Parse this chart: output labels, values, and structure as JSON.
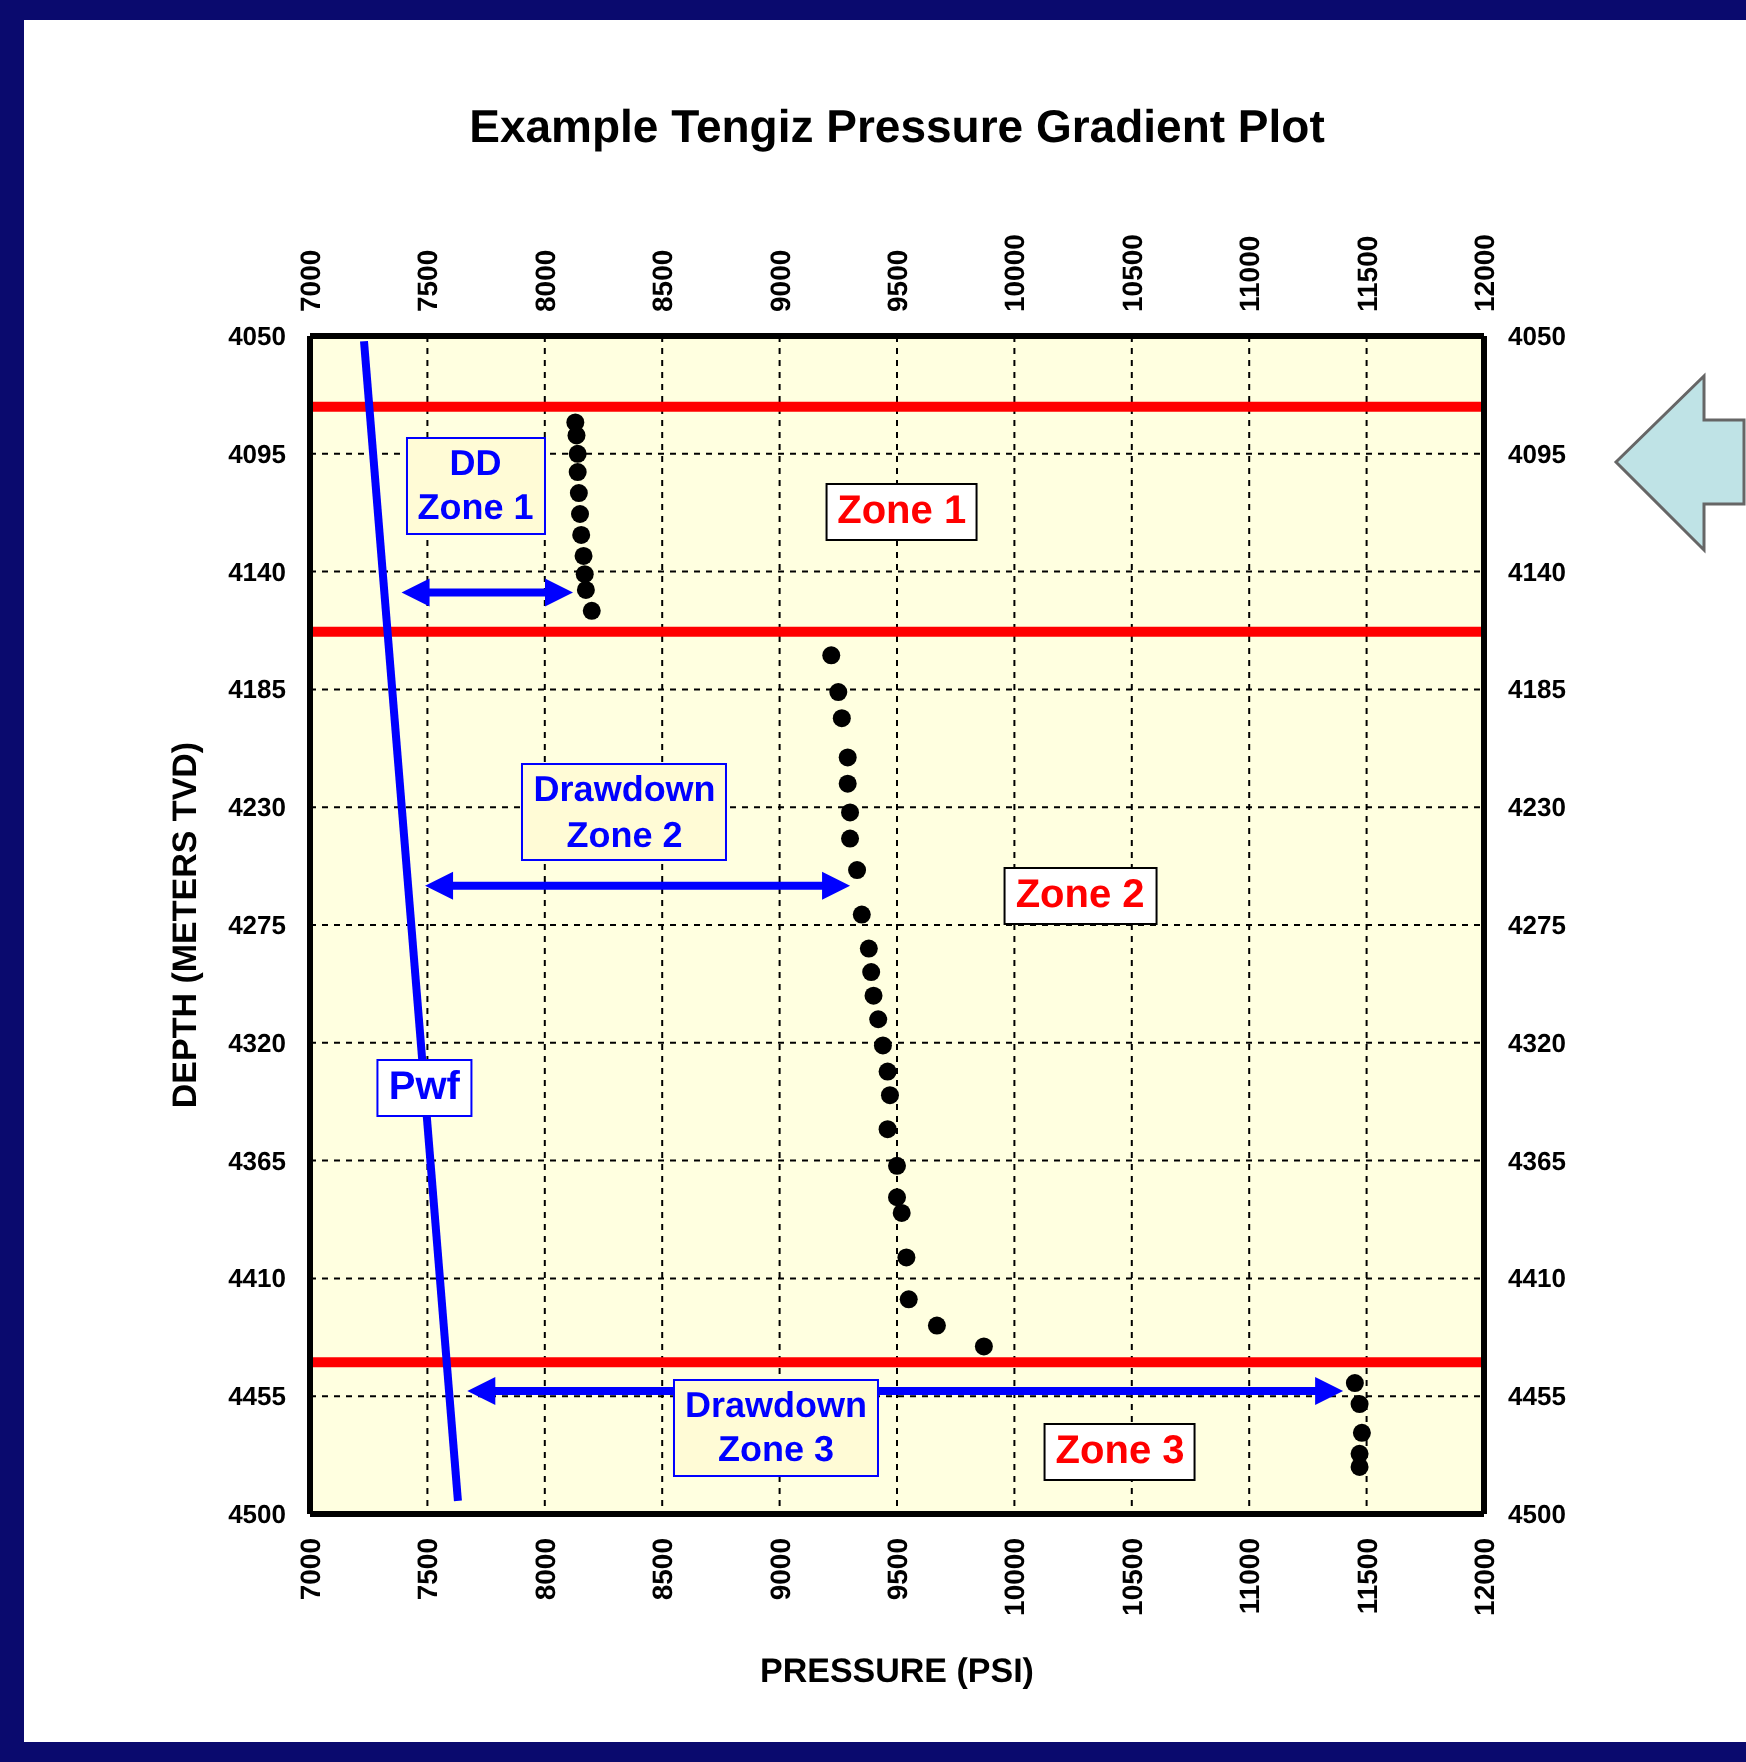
{
  "chart_data": {
    "type": "scatter",
    "title": "Example Tengiz Pressure Gradient Plot",
    "xlabel": "PRESSURE (PSI)",
    "ylabel": "DEPTH (METERS TVD)",
    "xlim": [
      7000,
      12000
    ],
    "xticks": [
      7000,
      7500,
      8000,
      8500,
      9000,
      9500,
      10000,
      10500,
      11000,
      11500,
      12000
    ],
    "x2lim": [
      7000,
      12000
    ],
    "x2ticks": [
      7000,
      7500,
      8000,
      8500,
      9000,
      9500,
      10000,
      10500,
      11000,
      11500,
      12000
    ],
    "ylim": [
      4500,
      4050
    ],
    "yticks": [
      4050,
      4095,
      4140,
      4185,
      4230,
      4275,
      4320,
      4365,
      4410,
      4455,
      4500
    ],
    "y2lim": [
      4500,
      4050
    ],
    "y2ticks": [
      4050,
      4095,
      4140,
      4185,
      4230,
      4275,
      4320,
      4365,
      4410,
      4455,
      4500
    ],
    "grid": true,
    "marker": "circle",
    "series": [
      {
        "color": "#000000",
        "x": [
          8130,
          8135,
          8140,
          8140,
          8145,
          8150,
          8155,
          8165,
          8170,
          8175,
          8200,
          9220,
          9250,
          9265,
          9290,
          9290,
          9300,
          9300,
          9330,
          9350,
          9380,
          9390,
          9400,
          9420,
          9440,
          9460,
          9470,
          9460,
          9500,
          9500,
          9520,
          9540,
          9550,
          9670,
          9870,
          11450,
          11470,
          11480,
          11470,
          11470
        ],
        "values": [
          4083,
          4088,
          4095,
          4102,
          4110,
          4118,
          4126,
          4134,
          4141,
          4147,
          4155,
          4172,
          4186,
          4196,
          4211,
          4221,
          4232,
          4242,
          4254,
          4271,
          4284,
          4293,
          4302,
          4311,
          4321,
          4331,
          4340,
          4353,
          4367,
          4379,
          4385,
          4402,
          4418,
          4428,
          4436,
          4450,
          4458,
          4469,
          4477,
          4482
        ]
      },
      {
        "type": "line",
        "color": "#0000ff",
        "marker": "none",
        "x": [
          7230,
          7630
        ],
        "values": [
          4052,
          4495
        ]
      }
    ],
    "ref_lines": [
      {
        "axis": "y",
        "value": 4077,
        "color": "#ff0000"
      },
      {
        "axis": "y",
        "value": 4163,
        "color": "#ff0000"
      },
      {
        "axis": "y",
        "value": 4442,
        "color": "#ff0000"
      }
    ],
    "annotations": [
      "DD\nZone 1",
      "Zone 1",
      "Drawdown\nZone 2",
      "Zone 2",
      {
        "text": "Pwf",
        "x": 7487,
        "y": 4337
      },
      "Drawdown\nZone 3",
      "Zone 3"
    ]
  }
}
